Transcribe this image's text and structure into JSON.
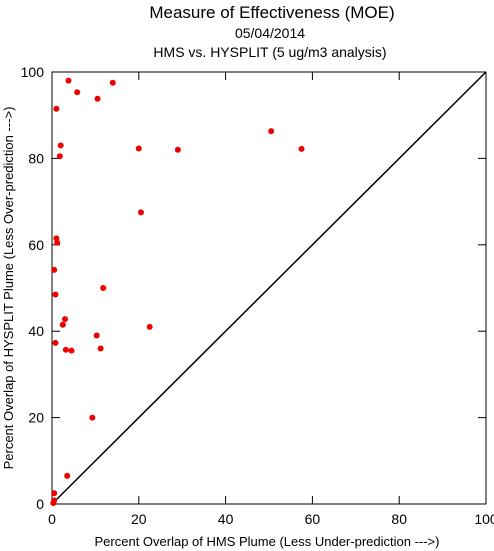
{
  "chart_data": {
    "type": "scatter",
    "title": "Measure of Effectiveness (MOE)",
    "subtitle_date": "05/04/2014",
    "subtitle_analysis": "HMS vs. HYSPLIT  (5 ug/m3 analysis)",
    "xlabel": "Percent Overlap of HMS Plume (Less Under-prediction --->)",
    "ylabel": "Percent Overlap of HYSPLIT Plume (Less Over-prediction --->)",
    "xlim": [
      0,
      100
    ],
    "ylim": [
      0,
      100
    ],
    "xticks": [
      0,
      20,
      40,
      60,
      80,
      100
    ],
    "yticks": [
      0,
      20,
      40,
      60,
      80,
      100
    ],
    "reference_line": "y = x",
    "grid": false,
    "legend": "none",
    "colors": {
      "points": "#ee0000",
      "axes": "#000000",
      "diagonal": "#000000"
    },
    "points": [
      {
        "x": 3.8,
        "y": 98.0
      },
      {
        "x": 14.0,
        "y": 97.5
      },
      {
        "x": 5.8,
        "y": 95.3
      },
      {
        "x": 10.5,
        "y": 93.8
      },
      {
        "x": 1.0,
        "y": 91.5
      },
      {
        "x": 50.5,
        "y": 86.3
      },
      {
        "x": 2.0,
        "y": 83.0
      },
      {
        "x": 20.0,
        "y": 82.3
      },
      {
        "x": 29.0,
        "y": 82.0
      },
      {
        "x": 57.5,
        "y": 82.2
      },
      {
        "x": 1.8,
        "y": 80.5
      },
      {
        "x": 20.5,
        "y": 67.5
      },
      {
        "x": 1.0,
        "y": 61.5
      },
      {
        "x": 1.2,
        "y": 60.5
      },
      {
        "x": 0.5,
        "y": 54.2
      },
      {
        "x": 11.8,
        "y": 50.0
      },
      {
        "x": 0.8,
        "y": 48.5
      },
      {
        "x": 3.0,
        "y": 42.8
      },
      {
        "x": 2.5,
        "y": 41.5
      },
      {
        "x": 22.5,
        "y": 41.0
      },
      {
        "x": 10.3,
        "y": 39.0
      },
      {
        "x": 0.8,
        "y": 37.3
      },
      {
        "x": 11.2,
        "y": 36.0
      },
      {
        "x": 3.2,
        "y": 35.7
      },
      {
        "x": 4.5,
        "y": 35.5
      },
      {
        "x": 9.3,
        "y": 20.0
      },
      {
        "x": 3.5,
        "y": 6.5
      },
      {
        "x": 0.5,
        "y": 2.5
      },
      {
        "x": 0.5,
        "y": 0.8
      },
      {
        "x": 0.3,
        "y": 0.2
      }
    ]
  }
}
